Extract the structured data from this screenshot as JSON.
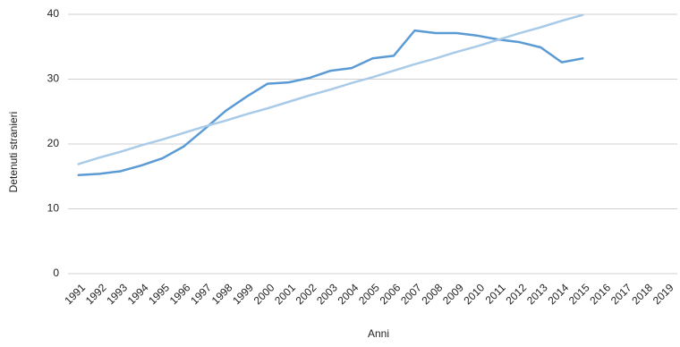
{
  "chart_data": {
    "type": "line",
    "x_label": "Anni",
    "y_label": "Detenuti stranieri",
    "categories": [
      "1991",
      "1992",
      "1993",
      "1994",
      "1995",
      "1996",
      "1997",
      "1998",
      "1999",
      "2000",
      "2001",
      "2002",
      "2003",
      "2004",
      "2005",
      "2006",
      "2007",
      "2008",
      "2009",
      "2010",
      "2011",
      "2012",
      "2013",
      "2014",
      "2015",
      "2016",
      "2017",
      "2018",
      "2019"
    ],
    "series": [
      {
        "color": "#5b9bd5",
        "values": [
          15.2,
          15.4,
          15.8,
          16.7,
          17.8,
          19.6,
          22.3,
          25.1,
          27.3,
          29.3,
          29.5,
          30.2,
          31.3,
          31.7,
          33.2,
          33.6,
          37.5,
          37.1,
          37.1,
          36.7,
          36.1,
          35.7,
          34.9,
          32.6,
          33.2,
          null,
          null,
          null,
          null
        ]
      },
      {
        "color": "#a9cbe8",
        "values": [
          16.9,
          17.9,
          18.8,
          19.8,
          20.7,
          21.7,
          22.7,
          23.6,
          24.6,
          25.5,
          26.5,
          27.5,
          28.4,
          29.4,
          30.3,
          31.3,
          32.3,
          33.2,
          34.2,
          35.1,
          36.1,
          37.1,
          38.0,
          39.0,
          39.9,
          null,
          null,
          null,
          null
        ]
      }
    ],
    "ylim": [
      0,
      40
    ],
    "yticks": [
      0,
      10,
      20,
      30,
      40
    ],
    "grid": true
  }
}
